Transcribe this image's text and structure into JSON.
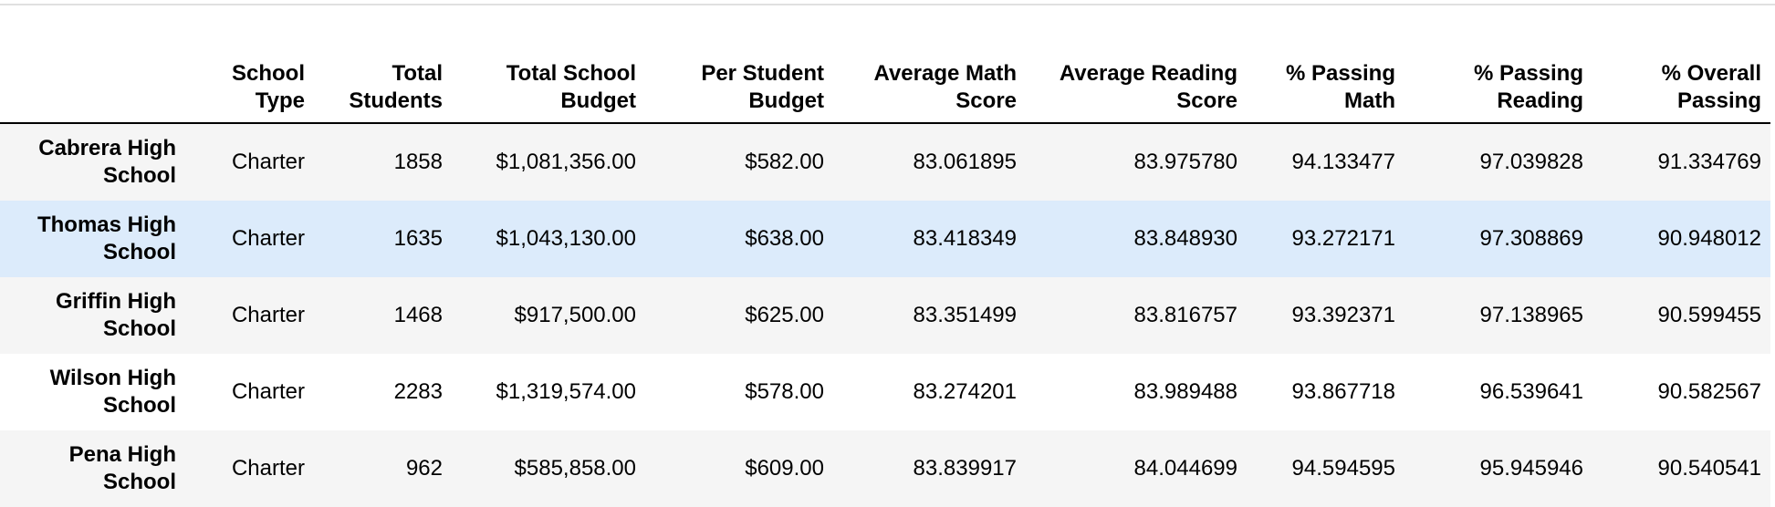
{
  "table": {
    "columns": [
      "",
      "School Type",
      "Total Students",
      "Total School Budget",
      "Per Student Budget",
      "Average Math Score",
      "Average Reading Score",
      "% Passing Math",
      "% Passing Reading",
      "% Overall Passing"
    ],
    "rows": [
      {
        "school": "Cabrera High School",
        "type": "Charter",
        "total_students": "1858",
        "total_budget": "$1,081,356.00",
        "per_student_budget": "$582.00",
        "avg_math": "83.061895",
        "avg_reading": "83.975780",
        "pct_math": "94.133477",
        "pct_reading": "97.039828",
        "pct_overall": "91.334769"
      },
      {
        "school": "Thomas High School",
        "type": "Charter",
        "total_students": "1635",
        "total_budget": "$1,043,130.00",
        "per_student_budget": "$638.00",
        "avg_math": "83.418349",
        "avg_reading": "83.848930",
        "pct_math": "93.272171",
        "pct_reading": "97.308869",
        "pct_overall": "90.948012"
      },
      {
        "school": "Griffin High School",
        "type": "Charter",
        "total_students": "1468",
        "total_budget": "$917,500.00",
        "per_student_budget": "$625.00",
        "avg_math": "83.351499",
        "avg_reading": "83.816757",
        "pct_math": "93.392371",
        "pct_reading": "97.138965",
        "pct_overall": "90.599455"
      },
      {
        "school": "Wilson High School",
        "type": "Charter",
        "total_students": "2283",
        "total_budget": "$1,319,574.00",
        "per_student_budget": "$578.00",
        "avg_math": "83.274201",
        "avg_reading": "83.989488",
        "pct_math": "93.867718",
        "pct_reading": "96.539641",
        "pct_overall": "90.582567"
      },
      {
        "school": "Pena High School",
        "type": "Charter",
        "total_students": "962",
        "total_budget": "$585,858.00",
        "per_student_budget": "$609.00",
        "avg_math": "83.839917",
        "avg_reading": "84.044699",
        "pct_math": "94.594595",
        "pct_reading": "95.945946",
        "pct_overall": "90.540541"
      }
    ]
  },
  "colors": {
    "row_stripe": "#f5f5f5",
    "row_hover": "#dcebfb",
    "header_rule": "#000000"
  }
}
